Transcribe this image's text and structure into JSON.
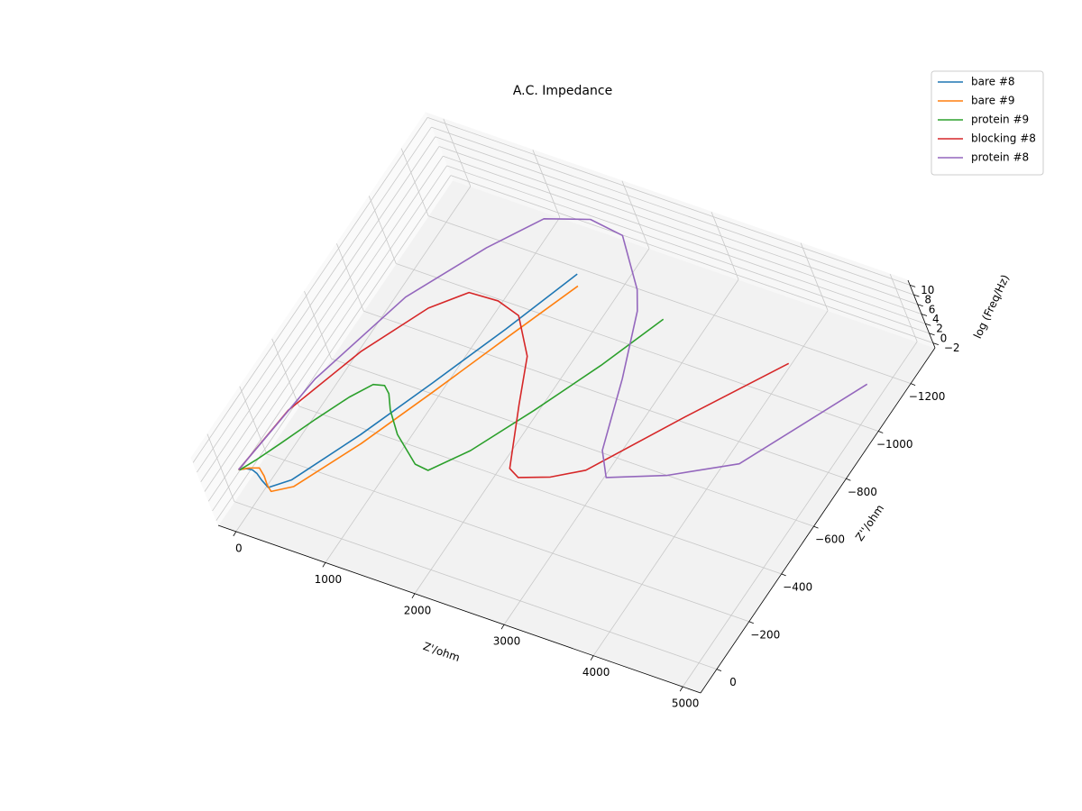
{
  "chart_data": {
    "type": "line3d",
    "title": "A.C. Impedance",
    "xlabel": "Z'/ohm",
    "ylabel": "Z''/ohm",
    "zlabel": "log (Freq/Hz)",
    "xlim": [
      -200,
      5200
    ],
    "ylim": [
      -1350,
      100
    ],
    "zlim": [
      -3,
      11
    ],
    "xticks": [
      0,
      1000,
      2000,
      3000,
      4000,
      5000
    ],
    "yticks": [
      {
        "value": 0,
        "label": "0"
      },
      {
        "value": -200,
        "label": "−200"
      },
      {
        "value": -400,
        "label": "−400"
      },
      {
        "value": -600,
        "label": "−600"
      },
      {
        "value": -800,
        "label": "−800"
      },
      {
        "value": -1000,
        "label": "−1000"
      },
      {
        "value": -1200,
        "label": "−1200"
      }
    ],
    "zticks": [
      {
        "value": -2,
        "label": "−2"
      },
      0,
      2,
      4,
      6,
      8,
      10
    ],
    "grid": true,
    "legend": "upper right",
    "series": [
      {
        "name": "bare #8",
        "color": "#1f77b4",
        "x": [
          20,
          60,
          100,
          140,
          200,
          280,
          420,
          720,
          1020,
          1320,
          1600
        ],
        "y": [
          0,
          -20,
          -30,
          -30,
          -20,
          -10,
          -70,
          -320,
          -590,
          -870,
          -1150
        ],
        "z": [
          5,
          4.5,
          4,
          3.5,
          3,
          2.5,
          2,
          1,
          0.3,
          -0.4,
          -1
        ]
      },
      {
        "name": "bare #9",
        "color": "#ff7f0e",
        "x": [
          20,
          80,
          150,
          220,
          280,
          330,
          480,
          780,
          1080,
          1380,
          1680
        ],
        "y": [
          0,
          -25,
          -45,
          -30,
          -10,
          0,
          -50,
          -290,
          -560,
          -840,
          -1110
        ],
        "z": [
          5,
          4.5,
          4,
          3.5,
          3,
          2.5,
          2,
          1,
          0.3,
          -0.4,
          -1
        ]
      },
      {
        "name": "protein #9",
        "color": "#2ca02c",
        "x": [
          30,
          100,
          200,
          350,
          500,
          620,
          720,
          800,
          900,
          1100,
          1420,
          1565,
          1800,
          2100,
          2400,
          2658
        ],
        "y": [
          0,
          -60,
          -150,
          -280,
          -400,
          -477,
          -490,
          -470,
          -420,
          -350,
          -277,
          -274,
          -400,
          -620,
          -860,
          -1098
        ],
        "z": [
          5,
          4.6,
          4.2,
          3.8,
          3.4,
          3,
          2.8,
          2.6,
          2.3,
          2,
          1.5,
          1.3,
          0.7,
          0.1,
          -0.5,
          -1
        ]
      },
      {
        "name": "blocking #8",
        "color": "#d62728",
        "x": [
          20,
          66,
          329,
          650,
          899,
          1200,
          1467,
          1785,
          2000,
          2303,
          2426,
          2700,
          2970,
          3500,
          4065
        ],
        "y": [
          0,
          -272,
          -567,
          -802,
          -910,
          -920,
          -897,
          -772,
          -600,
          -374,
          -356,
          -400,
          -468,
          -780,
          -1096
        ],
        "z": [
          5,
          4.2,
          3.5,
          3,
          2.5,
          2.2,
          2,
          1.8,
          1.6,
          1.5,
          1.3,
          1,
          0.8,
          -0.1,
          -1
        ]
      },
      {
        "name": "protein #8",
        "color": "#9467bd",
        "x": [
          20,
          117,
          404,
          815,
          1147,
          1558,
          1938,
          2395,
          2523,
          2794,
          3040,
          3232,
          3758,
          4320,
          4903
        ],
        "y": [
          0,
          -411,
          -804,
          -1073,
          -1242,
          -1299,
          -1285,
          -1121,
          -1050,
          -805,
          -542,
          -457,
          -541,
          -671,
          -1118
        ],
        "z": [
          5,
          4.2,
          3.6,
          3.2,
          3,
          2.7,
          2.5,
          2.3,
          2.2,
          2,
          1.7,
          1.5,
          1.2,
          0.8,
          -1
        ]
      }
    ]
  }
}
